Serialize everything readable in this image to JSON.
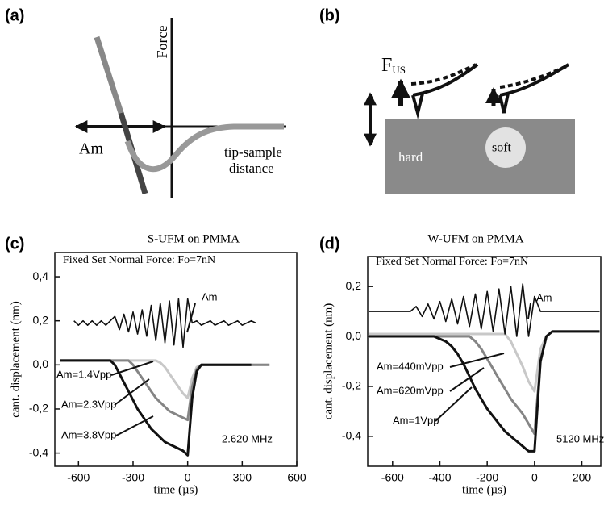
{
  "panels": {
    "a": {
      "label": "(a)",
      "force": "Force",
      "am": "Am",
      "distance_1": "tip-sample",
      "distance_2": "distance"
    },
    "b": {
      "label": "(b)",
      "force": "F",
      "force_sub": "US",
      "hard": "hard",
      "soft": "soft"
    }
  },
  "chart_data": [
    {
      "type": "line",
      "panel_label": "(c)",
      "title": "S-UFM on PMMA",
      "x_label": "time (µs)",
      "y_label": "cant. displacement (nm)",
      "xlim": [
        -730,
        600
      ],
      "ylim": [
        -0.46,
        0.51
      ],
      "xticks": [
        -600,
        -300,
        0,
        300,
        600
      ],
      "yticks": [
        {
          "value": 0.4,
          "label": "0,4"
        },
        {
          "value": 0.2,
          "label": "0,2"
        },
        {
          "value": 0,
          "label": "0,0"
        },
        {
          "value": -0.2,
          "label": "-0,2"
        },
        {
          "value": -0.4,
          "label": "-0,4"
        }
      ],
      "annotations": [
        "Fixed Set Normal Force: Fo=7nN",
        "Am",
        "Am=1.4Vpp",
        "Am=2.3Vpp",
        "Am=3.8Vpp",
        "2.620 MHz"
      ],
      "x": [
        -700,
        -675,
        -650,
        -625,
        -600,
        -575,
        -550,
        -525,
        -500,
        -475,
        -450,
        -425,
        -400,
        -375,
        -350,
        -325,
        -300,
        -275,
        -250,
        -225,
        -200,
        -175,
        -150,
        -125,
        -100,
        -75,
        -50,
        -25,
        0,
        25,
        50,
        75,
        100,
        125,
        150,
        175,
        200,
        225,
        250,
        275,
        300,
        325,
        350,
        375,
        400,
        425,
        450
      ],
      "series": [
        {
          "color": "#c8c8c8",
          "values": [
            0.02,
            0.02,
            0.02,
            0.02,
            0.02,
            0.02,
            0.02,
            0.02,
            0.02,
            0.02,
            0.02,
            0.02,
            0.02,
            0.02,
            0.02,
            0.02,
            0.02,
            0.02,
            0.02,
            0.02,
            0.02,
            0.02,
            0.01,
            -0.01,
            -0.04,
            -0.07,
            -0.1,
            -0.13,
            -0.15,
            -0.06,
            -0.01,
            0,
            0,
            0,
            0,
            0,
            0,
            0,
            0,
            0,
            0,
            0,
            0,
            0,
            0,
            0,
            0
          ]
        },
        {
          "color": "#858585",
          "values": [
            0.02,
            0.02,
            0.02,
            0.02,
            0.02,
            0.02,
            0.02,
            0.02,
            0.02,
            0.02,
            0.02,
            0.02,
            0.02,
            0.02,
            0.02,
            0.02,
            0,
            -0.03,
            -0.06,
            -0.09,
            -0.12,
            -0.15,
            -0.17,
            -0.19,
            -0.21,
            -0.22,
            -0.23,
            -0.24,
            -0.25,
            -0.1,
            -0.02,
            0,
            0,
            0,
            0,
            0,
            0,
            0,
            0,
            0,
            0,
            0,
            0,
            0,
            0,
            0,
            0
          ]
        },
        {
          "color": "#111111",
          "values": [
            0.02,
            0.02,
            0.02,
            0.02,
            0.02,
            0.02,
            0.02,
            0.02,
            0.02,
            0.02,
            0.02,
            0.02,
            0,
            -0.04,
            -0.08,
            -0.12,
            -0.16,
            -0.2,
            -0.23,
            -0.26,
            -0.29,
            -0.31,
            -0.33,
            -0.35,
            -0.36,
            -0.37,
            -0.38,
            -0.39,
            -0.41,
            -0.15,
            -0.03,
            0,
            0,
            0,
            0,
            0,
            0,
            0,
            0,
            0,
            0,
            0,
            0,
            null,
            null,
            null,
            null
          ]
        },
        {
          "color": "#111111",
          "values": [
            null,
            null,
            null,
            0.2,
            0.18,
            0.2,
            0.18,
            0.2,
            0.18,
            0.2,
            0.18,
            0.2,
            0.22,
            0.16,
            0.23,
            0.15,
            0.24,
            0.14,
            0.25,
            0.13,
            0.27,
            0.11,
            0.28,
            0.1,
            0.29,
            0.09,
            0.3,
            0.08,
            0.3,
            0.19,
            0.2,
            0.18,
            0.19,
            0.2,
            0.18,
            0.19,
            0.2,
            0.18,
            0.19,
            0.2,
            0.18,
            0.19,
            0.2,
            0.19,
            null,
            null,
            null
          ]
        }
      ]
    },
    {
      "type": "line",
      "panel_label": "(d)",
      "title": "W-UFM on PMMA",
      "x_label": "time (µs)",
      "y_label": "cant. displacement (nm)",
      "xlim": [
        -705,
        280
      ],
      "ylim": [
        -0.52,
        0.32
      ],
      "xticks": [
        -600,
        -400,
        -200,
        0,
        200
      ],
      "yticks": [
        {
          "value": 0.2,
          "label": "0,2"
        },
        {
          "value": 0,
          "label": "0,0"
        },
        {
          "value": -0.2,
          "label": "-0,2"
        },
        {
          "value": -0.4,
          "label": "-0,4"
        }
      ],
      "annotations": [
        "Fixed Set Normal Force: Fo=7nN",
        "Am",
        "Am=440mVpp",
        "Am=620mVpp",
        "Am=1Vpp",
        "5120 MHz"
      ],
      "x": [
        -700,
        -675,
        -650,
        -625,
        -600,
        -575,
        -550,
        -525,
        -500,
        -475,
        -450,
        -425,
        -400,
        -375,
        -350,
        -325,
        -300,
        -275,
        -250,
        -225,
        -200,
        -175,
        -150,
        -125,
        -100,
        -75,
        -50,
        -25,
        0,
        25,
        50,
        75,
        100,
        125,
        150,
        175,
        200,
        225,
        250,
        275
      ],
      "series": [
        {
          "color": "#c8c8c8",
          "values": [
            0.01,
            0.01,
            0.01,
            0.01,
            0.01,
            0.01,
            0.01,
            0.01,
            0.01,
            0.01,
            0.01,
            0.01,
            0.01,
            0.01,
            0.01,
            0.01,
            0.01,
            0.01,
            0.01,
            0.01,
            0.01,
            0.01,
            0.01,
            0.01,
            -0.02,
            -0.07,
            -0.12,
            -0.18,
            -0.22,
            -0.05,
            0,
            0.02,
            0.02,
            0.02,
            0.02,
            0.02,
            0.02,
            0.02,
            0.02,
            0.02
          ]
        },
        {
          "color": "#858585",
          "values": [
            0,
            0,
            0,
            0,
            0,
            0,
            0,
            0,
            0,
            0,
            0,
            0,
            0,
            0,
            0,
            0,
            0,
            0,
            -0.02,
            -0.05,
            -0.09,
            -0.13,
            -0.17,
            -0.21,
            -0.25,
            -0.28,
            -0.31,
            -0.35,
            -0.39,
            -0.1,
            0,
            0.02,
            0.02,
            0.02,
            0.02,
            0.02,
            0.02,
            0.02,
            0.02,
            0.02
          ]
        },
        {
          "color": "#111111",
          "values": [
            0,
            0,
            0,
            0,
            0,
            0,
            0,
            0,
            0,
            0,
            0,
            0,
            -0.01,
            -0.02,
            -0.04,
            -0.07,
            -0.11,
            -0.16,
            -0.21,
            -0.25,
            -0.29,
            -0.32,
            -0.35,
            -0.38,
            -0.4,
            -0.42,
            -0.44,
            -0.46,
            -0.46,
            -0.1,
            0,
            0.02,
            0.02,
            0.02,
            0.02,
            0.02,
            0.02,
            0.02,
            0.02,
            0.02
          ]
        },
        {
          "color": "#111111",
          "values": [
            0.1,
            0.1,
            0.1,
            0.1,
            0.1,
            0.1,
            0.1,
            0.1,
            0.12,
            0.08,
            0.13,
            0.07,
            0.14,
            0.06,
            0.15,
            0.05,
            0.16,
            0.04,
            0.17,
            0.03,
            0.18,
            0.02,
            0.19,
            0.01,
            0.2,
            0,
            0.21,
            0,
            0.16,
            0.1,
            0.1,
            0.1,
            0.1,
            0.1,
            0.1,
            0.1,
            0.1,
            0.1,
            0.1,
            0.1
          ]
        }
      ]
    }
  ]
}
